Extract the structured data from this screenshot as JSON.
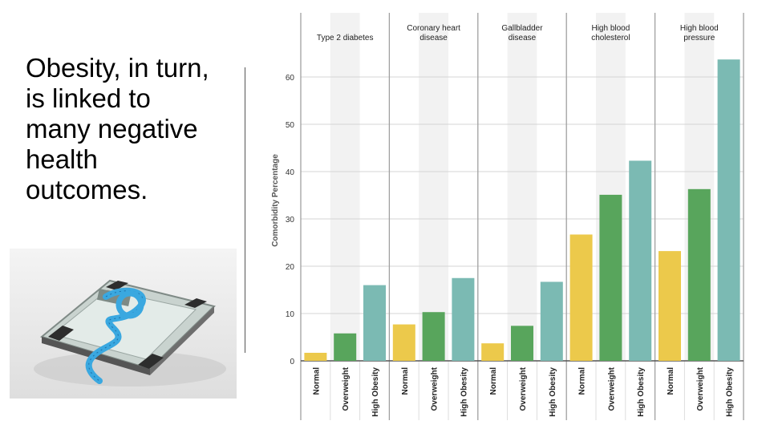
{
  "slide": {
    "text_lines": [
      "Obesity, in turn,",
      "is linked to",
      "many negative",
      "health",
      "outcomes."
    ]
  },
  "chart_data": {
    "type": "bar",
    "ylabel": "Comorbidity Percentage",
    "ylim": [
      0,
      66
    ],
    "yticks": [
      0,
      10,
      20,
      30,
      40,
      50,
      60
    ],
    "categories": [
      "Normal",
      "Overweight",
      "High Obesity"
    ],
    "colors": {
      "Normal": "#ecc94b",
      "Overweight": "#58a55c",
      "High Obesity": "#7bbab3"
    },
    "panel_shade": "#f2f2f2",
    "panels": [
      {
        "label": "Type 2 diabetes",
        "values": [
          1.7,
          5.8,
          16.0
        ]
      },
      {
        "label": "Coronary heart disease",
        "values": [
          7.7,
          10.3,
          17.5
        ]
      },
      {
        "label": "Gallbladder disease",
        "values": [
          3.7,
          7.4,
          16.7
        ]
      },
      {
        "label": "High blood cholesterol",
        "values": [
          26.7,
          35.1,
          42.3
        ]
      },
      {
        "label": "High blood pressure",
        "values": [
          23.2,
          36.3,
          63.7
        ]
      }
    ]
  }
}
